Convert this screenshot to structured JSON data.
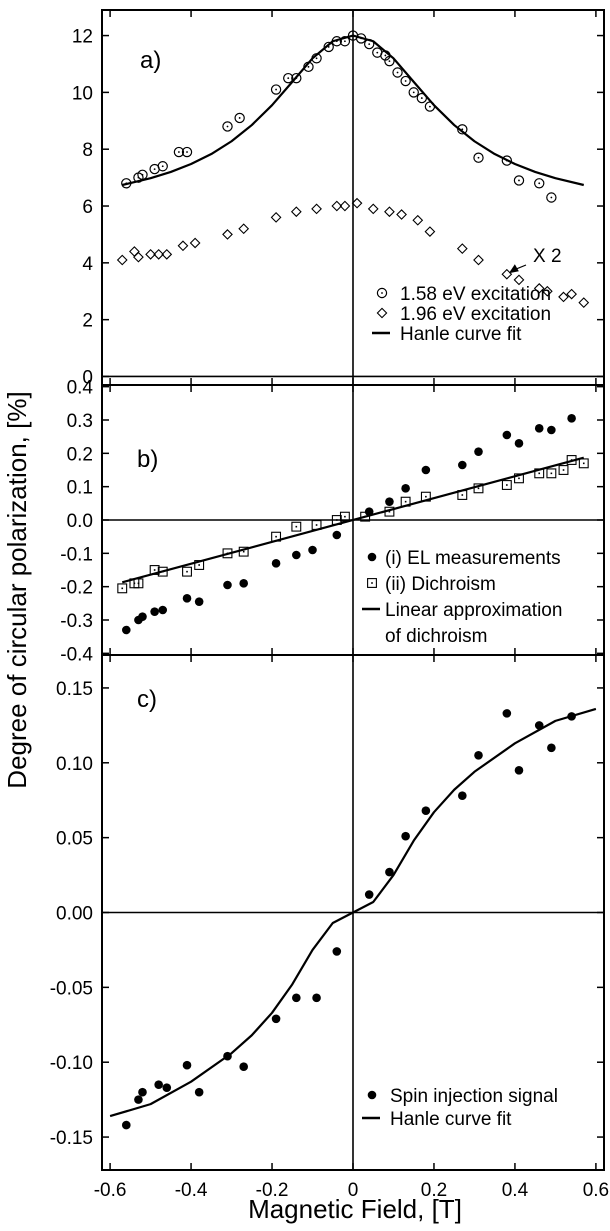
{
  "figure": {
    "ylabel": "Degree of circular polarization, [%]",
    "xlabel": "Magnetic Field, [T]"
  },
  "chart_data": [
    {
      "panel": "a)",
      "type": "scatter",
      "xlim": [
        -0.62,
        0.62
      ],
      "ylim": [
        -0.3,
        12.9
      ],
      "x_ticks": [
        -0.6,
        -0.4,
        -0.2,
        0,
        0.2,
        0.4,
        0.6
      ],
      "y_ticks": [
        0,
        2,
        4,
        6,
        8,
        10,
        12
      ],
      "y_tick_labels": [
        "0",
        "2",
        "4",
        "6",
        "8",
        "10",
        "12"
      ],
      "annotation": {
        "text": "X 2",
        "arrow_to": [
          0.38,
          3.6
        ]
      },
      "legend": {
        "position": "bottom-right",
        "entries": [
          {
            "marker": "open-circle",
            "label": "1.58 eV excitation"
          },
          {
            "marker": "open-diamond",
            "label": "1.96 eV excitation"
          },
          {
            "marker": "line",
            "label": "Hanle curve fit"
          }
        ]
      },
      "series": [
        {
          "label": "1.58 eV excitation",
          "marker": "open-circle",
          "x": [
            -0.56,
            -0.53,
            -0.52,
            -0.49,
            -0.47,
            -0.43,
            -0.41,
            -0.31,
            -0.28,
            -0.19,
            -0.16,
            -0.14,
            -0.11,
            -0.09,
            -0.06,
            -0.04,
            -0.02,
            0.0,
            0.02,
            0.04,
            0.06,
            0.08,
            0.09,
            0.11,
            0.13,
            0.15,
            0.17,
            0.19,
            0.27,
            0.31,
            0.38,
            0.41,
            0.46,
            0.49
          ],
          "y": [
            6.8,
            7.0,
            7.1,
            7.3,
            7.4,
            7.9,
            7.9,
            8.8,
            9.1,
            10.1,
            10.5,
            10.5,
            10.9,
            11.2,
            11.6,
            11.8,
            11.8,
            12.0,
            11.9,
            11.7,
            11.4,
            11.3,
            11.1,
            10.7,
            10.4,
            10.0,
            9.8,
            9.5,
            8.7,
            7.7,
            7.6,
            6.9,
            6.8,
            6.3
          ]
        },
        {
          "label": "1.96 eV excitation",
          "marker": "open-diamond",
          "x": [
            -0.57,
            -0.54,
            -0.53,
            -0.5,
            -0.48,
            -0.46,
            -0.42,
            -0.39,
            -0.31,
            -0.27,
            -0.19,
            -0.14,
            -0.09,
            -0.04,
            -0.02,
            0.01,
            0.05,
            0.09,
            0.12,
            0.16,
            0.19,
            0.27,
            0.31,
            0.38,
            0.41,
            0.46,
            0.48,
            0.52,
            0.54,
            0.57
          ],
          "y": [
            4.1,
            4.4,
            4.2,
            4.3,
            4.3,
            4.3,
            4.6,
            4.7,
            5.0,
            5.2,
            5.6,
            5.8,
            5.9,
            6.0,
            6.0,
            6.1,
            5.9,
            5.8,
            5.7,
            5.5,
            5.1,
            4.5,
            4.1,
            3.6,
            3.4,
            3.1,
            3.0,
            2.8,
            2.9,
            2.6
          ]
        },
        {
          "label": "Hanle curve fit",
          "marker": "line",
          "x": [
            -0.57,
            -0.5,
            -0.45,
            -0.4,
            -0.35,
            -0.3,
            -0.25,
            -0.2,
            -0.15,
            -0.1,
            -0.05,
            0.0,
            0.05,
            0.1,
            0.15,
            0.2,
            0.25,
            0.3,
            0.35,
            0.4,
            0.45,
            0.5,
            0.57
          ],
          "y": [
            6.74,
            6.98,
            7.2,
            7.48,
            7.83,
            8.28,
            8.85,
            9.55,
            10.37,
            11.2,
            11.8,
            12.0,
            11.8,
            11.2,
            10.37,
            9.55,
            8.85,
            8.28,
            7.83,
            7.48,
            7.2,
            6.98,
            6.74
          ]
        }
      ]
    },
    {
      "panel": "b)",
      "type": "scatter",
      "xlim": [
        -0.62,
        0.62
      ],
      "ylim": [
        -0.405,
        0.405
      ],
      "x_ticks": [
        -0.6,
        -0.4,
        -0.2,
        0,
        0.2,
        0.4,
        0.6
      ],
      "y_ticks": [
        -0.4,
        -0.3,
        -0.2,
        -0.1,
        0.0,
        0.1,
        0.2,
        0.3,
        0.4
      ],
      "y_tick_labels": [
        "-0.4",
        "-0.3",
        "-0.2",
        "-0.1",
        "0.0",
        "0.1",
        "0.2",
        "0.3",
        "0.4"
      ],
      "legend": {
        "position": "bottom-right",
        "entries": [
          {
            "marker": "filled-circle",
            "label": "(i) EL measurements"
          },
          {
            "marker": "open-square",
            "label": "(ii) Dichroism"
          },
          {
            "marker": "line",
            "label": "Linear approximation",
            "label2": "of dichroism"
          }
        ]
      },
      "series": [
        {
          "label": "(i) EL measurements",
          "marker": "filled-circle",
          "x": [
            -0.56,
            -0.53,
            -0.52,
            -0.49,
            -0.47,
            -0.41,
            -0.38,
            -0.31,
            -0.27,
            -0.19,
            -0.14,
            -0.1,
            -0.04,
            0.04,
            0.09,
            0.13,
            0.18,
            0.27,
            0.31,
            0.38,
            0.41,
            0.46,
            0.49,
            0.54
          ],
          "y": [
            -0.33,
            -0.3,
            -0.29,
            -0.275,
            -0.27,
            -0.235,
            -0.245,
            -0.195,
            -0.19,
            -0.13,
            -0.105,
            -0.09,
            -0.045,
            0.025,
            0.055,
            0.095,
            0.15,
            0.165,
            0.205,
            0.255,
            0.23,
            0.275,
            0.27,
            0.305
          ]
        },
        {
          "label": "(ii) Dichroism",
          "marker": "open-square",
          "x": [
            -0.57,
            -0.54,
            -0.53,
            -0.49,
            -0.47,
            -0.41,
            -0.38,
            -0.31,
            -0.27,
            -0.19,
            -0.14,
            -0.09,
            -0.04,
            -0.02,
            0.03,
            0.09,
            0.13,
            0.18,
            0.27,
            0.31,
            0.38,
            0.41,
            0.46,
            0.49,
            0.52,
            0.54,
            0.57
          ],
          "y": [
            -0.205,
            -0.19,
            -0.19,
            -0.15,
            -0.155,
            -0.155,
            -0.135,
            -0.1,
            -0.095,
            -0.05,
            -0.02,
            -0.015,
            0.0,
            0.01,
            0.01,
            0.025,
            0.055,
            0.07,
            0.075,
            0.095,
            0.105,
            0.125,
            0.14,
            0.14,
            0.15,
            0.18,
            0.17
          ]
        },
        {
          "label": "Linear approximation of dichroism",
          "marker": "line",
          "x": [
            -0.57,
            0.57
          ],
          "y": [
            -0.187,
            0.187
          ]
        }
      ]
    },
    {
      "panel": "c)",
      "type": "scatter",
      "xlim": [
        -0.62,
        0.62
      ],
      "ylim": [
        -0.172,
        0.172
      ],
      "x_ticks": [
        -0.6,
        -0.4,
        -0.2,
        0,
        0.2,
        0.4,
        0.6
      ],
      "x_tick_labels": [
        "-0.6",
        "-0.4",
        "-0.2",
        "0",
        "0.2",
        "0.4",
        "0.6"
      ],
      "y_ticks": [
        -0.15,
        -0.1,
        -0.05,
        0.0,
        0.05,
        0.1,
        0.15
      ],
      "y_tick_labels": [
        "-0.15",
        "-0.10",
        "-0.05",
        "0.00",
        "0.05",
        "0.10",
        "0.15"
      ],
      "legend": {
        "position": "bottom-right",
        "entries": [
          {
            "marker": "filled-circle",
            "label": "Spin injection signal"
          },
          {
            "marker": "line",
            "label": "Hanle curve fit"
          }
        ]
      },
      "series": [
        {
          "label": "Spin injection signal",
          "marker": "filled-circle",
          "x": [
            -0.56,
            -0.53,
            -0.52,
            -0.48,
            -0.46,
            -0.41,
            -0.38,
            -0.31,
            -0.27,
            -0.19,
            -0.14,
            -0.09,
            -0.04,
            0.04,
            0.09,
            0.13,
            0.18,
            0.27,
            0.31,
            0.38,
            0.41,
            0.46,
            0.49,
            0.54
          ],
          "y": [
            -0.142,
            -0.125,
            -0.12,
            -0.115,
            -0.117,
            -0.102,
            -0.12,
            -0.096,
            -0.103,
            -0.071,
            -0.057,
            -0.057,
            -0.026,
            0.012,
            0.027,
            0.051,
            0.068,
            0.078,
            0.105,
            0.133,
            0.095,
            0.125,
            0.11,
            0.131
          ]
        },
        {
          "label": "Hanle curve fit",
          "marker": "line",
          "x": [
            -0.6,
            -0.5,
            -0.4,
            -0.3,
            -0.25,
            -0.2,
            -0.15,
            -0.1,
            -0.05,
            0.0,
            0.05,
            0.1,
            0.15,
            0.2,
            0.25,
            0.3,
            0.4,
            0.5,
            0.6
          ],
          "y": [
            -0.136,
            -0.128,
            -0.113,
            -0.094,
            -0.082,
            -0.067,
            -0.048,
            -0.025,
            -0.007,
            0.0,
            0.007,
            0.025,
            0.048,
            0.067,
            0.082,
            0.094,
            0.113,
            0.128,
            0.136
          ]
        }
      ]
    }
  ]
}
